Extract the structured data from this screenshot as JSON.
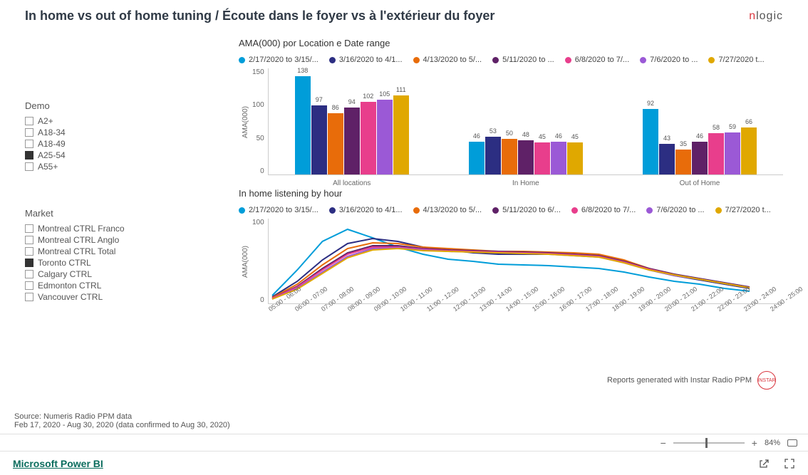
{
  "header": {
    "title": "In home vs out of home tuning / Écoute dans le foyer vs à l'extérieur du foyer",
    "logo_prefix": "n",
    "logo_rest": "logic"
  },
  "sidebar": {
    "demo": {
      "title": "Demo",
      "items": [
        {
          "label": "A2+",
          "checked": false
        },
        {
          "label": "A18-34",
          "checked": false
        },
        {
          "label": "A18-49",
          "checked": false
        },
        {
          "label": "A25-54",
          "checked": true
        },
        {
          "label": "A55+",
          "checked": false
        }
      ]
    },
    "market": {
      "title": "Market",
      "items": [
        {
          "label": "Montreal CTRL Franco",
          "checked": false
        },
        {
          "label": "Montreal CTRL Anglo",
          "checked": false
        },
        {
          "label": "Montreal CTRL Total",
          "checked": false
        },
        {
          "label": "Toronto CTRL",
          "checked": true
        },
        {
          "label": "Calgary CTRL",
          "checked": false
        },
        {
          "label": "Edmonton CTRL",
          "checked": false
        },
        {
          "label": "Vancouver CTRL",
          "checked": false
        }
      ]
    }
  },
  "series_colors": [
    "#009dd9",
    "#2c2e82",
    "#e86c0a",
    "#5f2167",
    "#e83e8c",
    "#9b59d6",
    "#e0a800"
  ],
  "series_labels": [
    "2/17/2020 to 3/15/...",
    "3/16/2020 to 4/1...",
    "4/13/2020 to 5/...",
    "5/11/2020 to ...",
    "6/8/2020 to 7/...",
    "7/6/2020 to ...",
    "7/27/2020 t..."
  ],
  "series_labels_line": [
    "2/17/2020 to 3/15/...",
    "3/16/2020 to 4/1...",
    "4/13/2020 to 5/...",
    "5/11/2020 to 6/...",
    "6/8/2020 to 7/...",
    "7/6/2020 to ...",
    "7/27/2020 t..."
  ],
  "bar_chart": {
    "title": "AMA(000) por Location e Date range",
    "y_label": "AMA(000)",
    "y_ticks": [
      "150",
      "100",
      "50",
      "0"
    ],
    "y_max": 150,
    "groups": [
      {
        "name": "All locations",
        "values": [
          138,
          97,
          86,
          94,
          102,
          105,
          111
        ]
      },
      {
        "name": "In Home",
        "values": [
          46,
          53,
          50,
          48,
          45,
          46,
          45
        ]
      },
      {
        "name": "Out of Home",
        "values": [
          92,
          43,
          35,
          46,
          58,
          59,
          66
        ]
      }
    ]
  },
  "line_chart": {
    "title": "In home listening by hour",
    "y_label": "AMA(000)",
    "y_ticks": [
      "100",
      "0"
    ],
    "y_max": 120,
    "x_labels": [
      "05:00 - 06:00",
      "06:00 - 07:00",
      "07:00 - 08:00",
      "08:00 - 09:00",
      "09:00 - 10:00",
      "10:00 - 11:00",
      "11:00 - 12:00",
      "12:00 - 13:00",
      "13:00 - 14:00",
      "14:00 - 15:00",
      "15:00 - 16:00",
      "16:00 - 17:00",
      "17:00 - 18:00",
      "18:00 - 19:00",
      "19:00 - 20:00",
      "20:00 - 21:00",
      "21:00 - 22:00",
      "22:00 - 23:00",
      "23:00 - 24:00",
      "24:00 - 25:00"
    ],
    "series": [
      [
        12,
        48,
        88,
        105,
        93,
        80,
        70,
        63,
        60,
        56,
        55,
        54,
        52,
        50,
        45,
        38,
        32,
        28,
        22,
        18
      ],
      [
        10,
        32,
        62,
        85,
        92,
        88,
        80,
        76,
        72,
        70,
        70,
        70,
        70,
        68,
        60,
        48,
        40,
        34,
        28,
        22
      ],
      [
        9,
        28,
        55,
        78,
        86,
        85,
        80,
        78,
        76,
        74,
        74,
        73,
        72,
        70,
        62,
        50,
        42,
        35,
        29,
        23
      ],
      [
        8,
        25,
        50,
        72,
        82,
        82,
        78,
        76,
        75,
        74,
        73,
        72,
        70,
        68,
        60,
        50,
        42,
        36,
        30,
        24
      ],
      [
        8,
        24,
        48,
        70,
        80,
        80,
        77,
        75,
        74,
        73,
        72,
        71,
        69,
        67,
        59,
        49,
        41,
        35,
        29,
        23
      ],
      [
        7,
        22,
        45,
        67,
        78,
        79,
        76,
        74,
        73,
        72,
        71,
        70,
        68,
        66,
        58,
        48,
        40,
        35,
        29,
        23
      ],
      [
        7,
        21,
        43,
        65,
        76,
        78,
        75,
        74,
        73,
        72,
        71,
        70,
        68,
        66,
        58,
        48,
        41,
        35,
        29,
        23
      ]
    ]
  },
  "footer": {
    "source_line1": "Source: Numeris Radio PPM data",
    "source_line2": "Feb 17, 2020 - Aug 30, 2020 (data confirmed to Aug 30, 2020)",
    "report_line": "Reports generated with Instar Radio PPM",
    "instar_badge": "INSTAR"
  },
  "zoom": {
    "minus": "−",
    "plus": "+",
    "percent": "84%"
  },
  "powerbi": {
    "link": "Microsoft Power BI"
  }
}
